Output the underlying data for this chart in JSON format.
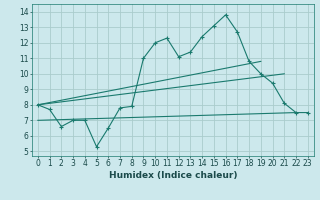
{
  "title": "",
  "xlabel": "Humidex (Indice chaleur)",
  "bg_color": "#cce8ec",
  "grid_color": "#aacccc",
  "line_color": "#1a7a6e",
  "xlim": [
    -0.5,
    23.5
  ],
  "ylim": [
    4.7,
    14.5
  ],
  "yticks": [
    5,
    6,
    7,
    8,
    9,
    10,
    11,
    12,
    13,
    14
  ],
  "xticks": [
    0,
    1,
    2,
    3,
    4,
    5,
    6,
    7,
    8,
    9,
    10,
    11,
    12,
    13,
    14,
    15,
    16,
    17,
    18,
    19,
    20,
    21,
    22,
    23
  ],
  "line1_x": [
    0,
    1,
    2,
    3,
    4,
    5,
    6,
    7,
    8,
    9,
    10,
    11,
    12,
    13,
    14,
    15,
    16,
    17,
    18,
    19,
    20,
    21,
    22,
    23
  ],
  "line1_y": [
    8.0,
    7.7,
    6.6,
    7.0,
    7.0,
    5.3,
    6.5,
    7.8,
    7.9,
    11.0,
    12.0,
    12.3,
    11.1,
    11.4,
    12.4,
    13.1,
    13.8,
    12.7,
    10.8,
    10.0,
    9.4,
    8.1,
    7.5,
    7.5
  ],
  "line2_x": [
    0,
    19
  ],
  "line2_y": [
    8.0,
    10.8
  ],
  "line3_x": [
    0,
    21
  ],
  "line3_y": [
    8.0,
    10.0
  ],
  "line4_x": [
    0,
    22
  ],
  "line4_y": [
    7.0,
    7.5
  ],
  "xlabel_fontsize": 6.5,
  "tick_fontsize": 5.5
}
